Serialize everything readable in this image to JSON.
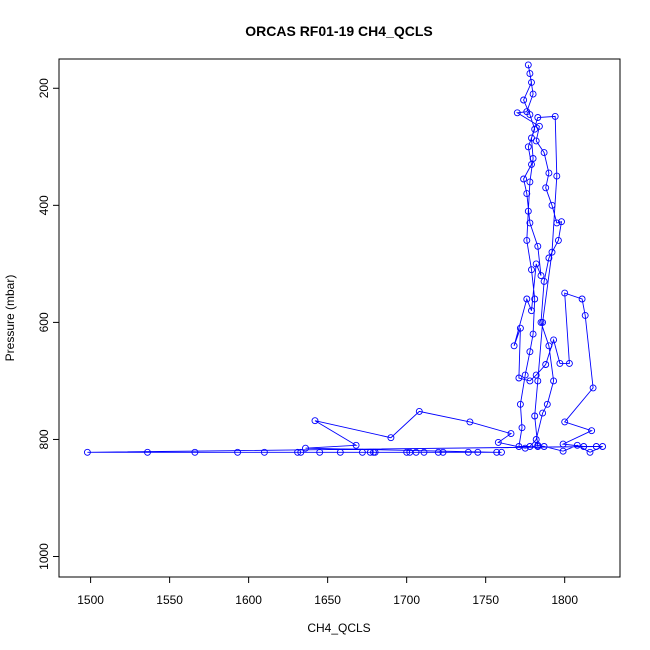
{
  "chart_data": {
    "type": "line",
    "title": "ORCAS RF01-19 CH4_QCLS",
    "xlabel": "CH4_QCLS",
    "ylabel": "Pressure (mbar)",
    "xlim": [
      1480,
      1835
    ],
    "ylim": [
      1035,
      150
    ],
    "y_reversed": true,
    "x_ticks": [
      1500,
      1550,
      1600,
      1650,
      1700,
      1750,
      1800
    ],
    "y_ticks": [
      200,
      400,
      600,
      800,
      1000
    ],
    "grid": false,
    "legend": "none",
    "series_color": "#0000ff",
    "markers": "open-circle",
    "series": [
      {
        "points": [
          [
            1820,
            812
          ],
          [
            1498,
            822
          ],
          [
            1760,
            822
          ],
          [
            1536,
            822
          ],
          [
            1745,
            822
          ],
          [
            1566,
            822
          ],
          [
            1700,
            822
          ],
          [
            1593,
            822
          ],
          [
            1672,
            822
          ],
          [
            1610,
            822
          ],
          [
            1680,
            822
          ],
          [
            1631,
            822
          ],
          [
            1633,
            822
          ],
          [
            1645,
            822
          ],
          [
            1658,
            822
          ],
          [
            1677,
            822
          ],
          [
            1679,
            822
          ],
          [
            1702,
            822
          ],
          [
            1706,
            822
          ],
          [
            1711,
            822
          ],
          [
            1720,
            822
          ],
          [
            1723,
            822
          ],
          [
            1739,
            822
          ],
          [
            1757,
            822
          ],
          [
            1636,
            815
          ],
          [
            1668,
            810
          ],
          [
            1642,
            768
          ],
          [
            1690,
            797
          ],
          [
            1708,
            752
          ],
          [
            1740,
            770
          ],
          [
            1766,
            790
          ],
          [
            1758,
            805
          ],
          [
            1775,
            815
          ],
          [
            1783,
            810
          ],
          [
            1787,
            812
          ],
          [
            1799,
            820
          ],
          [
            1808,
            810
          ],
          [
            1816,
            822
          ],
          [
            1824,
            812
          ],
          [
            1812,
            812
          ],
          [
            1799,
            808
          ],
          [
            1817,
            785
          ],
          [
            1800,
            770
          ],
          [
            1818,
            712
          ],
          [
            1813,
            588
          ],
          [
            1811,
            560
          ],
          [
            1800,
            550
          ],
          [
            1803,
            670
          ],
          [
            1797,
            670
          ],
          [
            1793,
            630
          ],
          [
            1788,
            672
          ],
          [
            1782,
            690
          ],
          [
            1778,
            700
          ],
          [
            1771,
            695
          ],
          [
            1772,
            610
          ],
          [
            1768,
            640
          ],
          [
            1776,
            560
          ],
          [
            1779,
            580
          ],
          [
            1782,
            500
          ],
          [
            1785,
            520
          ],
          [
            1783,
            470
          ],
          [
            1778,
            430
          ],
          [
            1776,
            380
          ],
          [
            1774,
            355
          ],
          [
            1779,
            330
          ],
          [
            1777,
            300
          ],
          [
            1781,
            270
          ],
          [
            1778,
            245
          ],
          [
            1774,
            220
          ],
          [
            1779,
            190
          ],
          [
            1777,
            160
          ],
          [
            1778,
            175
          ],
          [
            1780,
            210
          ],
          [
            1776,
            240
          ],
          [
            1770,
            242
          ],
          [
            1784,
            265
          ],
          [
            1782,
            290
          ],
          [
            1787,
            310
          ],
          [
            1790,
            345
          ],
          [
            1788,
            370
          ],
          [
            1792,
            400
          ],
          [
            1795,
            430
          ],
          [
            1798,
            428
          ],
          [
            1796,
            460
          ],
          [
            1790,
            490
          ],
          [
            1787,
            530
          ],
          [
            1785,
            600
          ],
          [
            1790,
            640
          ],
          [
            1793,
            700
          ],
          [
            1789,
            740
          ],
          [
            1786,
            755
          ],
          [
            1782,
            800
          ],
          [
            1778,
            812
          ],
          [
            1771,
            812
          ],
          [
            1773,
            780
          ],
          [
            1772,
            740
          ],
          [
            1775,
            690
          ],
          [
            1778,
            650
          ],
          [
            1780,
            620
          ],
          [
            1781,
            560
          ],
          [
            1779,
            510
          ],
          [
            1776,
            460
          ],
          [
            1777,
            410
          ],
          [
            1778,
            360
          ],
          [
            1780,
            320
          ],
          [
            1779,
            285
          ],
          [
            1783,
            250
          ],
          [
            1794,
            248
          ],
          [
            1795,
            350
          ],
          [
            1792,
            480
          ],
          [
            1786,
            600
          ],
          [
            1783,
            700
          ],
          [
            1781,
            760
          ],
          [
            1783,
            812
          ]
        ]
      }
    ]
  }
}
